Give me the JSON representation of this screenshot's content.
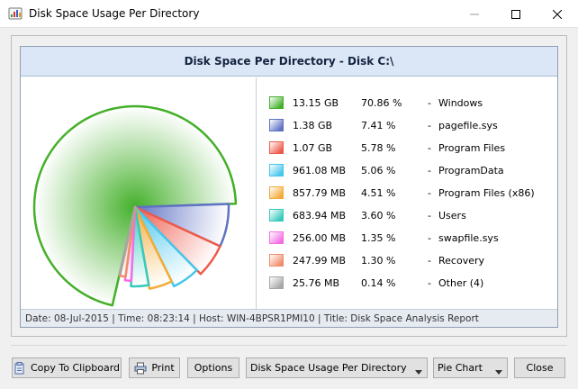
{
  "window": {
    "title": "Disk Space Usage Per Directory",
    "icon": "disk-chart-icon",
    "controls": [
      "minimize-icon",
      "maximize-icon",
      "close-icon"
    ]
  },
  "chart_data": {
    "type": "pie",
    "title": "Disk Space Per Directory - Disk C:\\",
    "series": [
      {
        "name": "Windows",
        "size": "13.15 GB",
        "percent_label": "70.86 %",
        "value": 70.86,
        "color": "#44b02a"
      },
      {
        "name": "pagefile.sys",
        "size": "1.38 GB",
        "percent_label": "7.41 %",
        "value": 7.41,
        "color": "#5f72c4"
      },
      {
        "name": "Program Files",
        "size": "1.07 GB",
        "percent_label": "5.78 %",
        "value": 5.78,
        "color": "#ee5a4a"
      },
      {
        "name": "ProgramData",
        "size": "961.08 MB",
        "percent_label": "5.06 %",
        "value": 5.06,
        "color": "#45c6ec"
      },
      {
        "name": "Program Files (x86)",
        "size": "857.79 MB",
        "percent_label": "4.51 %",
        "value": 4.51,
        "color": "#f3ab38"
      },
      {
        "name": "Users",
        "size": "683.94 MB",
        "percent_label": "3.60 %",
        "value": 3.6,
        "color": "#36c9bd"
      },
      {
        "name": "swapfile.sys",
        "size": "256.00 MB",
        "percent_label": "1.35 %",
        "value": 1.35,
        "color": "#f36ee4"
      },
      {
        "name": "Recovery",
        "size": "247.99 MB",
        "percent_label": "1.30 %",
        "value": 1.3,
        "color": "#f08d6a"
      },
      {
        "name": "Other (4)",
        "size": "25.76 MB",
        "percent_label": "0.14 %",
        "value": 0.14,
        "color": "#a6a6a6"
      }
    ],
    "legend": "right"
  },
  "footer": {
    "info": "Date: 08-Jul-2015 | Time: 08:23:14 | Host: WIN-4BPSR1PMI10 | Title: Disk Space Analysis Report"
  },
  "toolbar": {
    "copy_label": "Copy To Clipboard",
    "print_label": "Print",
    "options_label": "Options",
    "view_select": "Disk Space Usage Per Directory",
    "chart_select": "Pie Chart",
    "close_label": "Close"
  }
}
